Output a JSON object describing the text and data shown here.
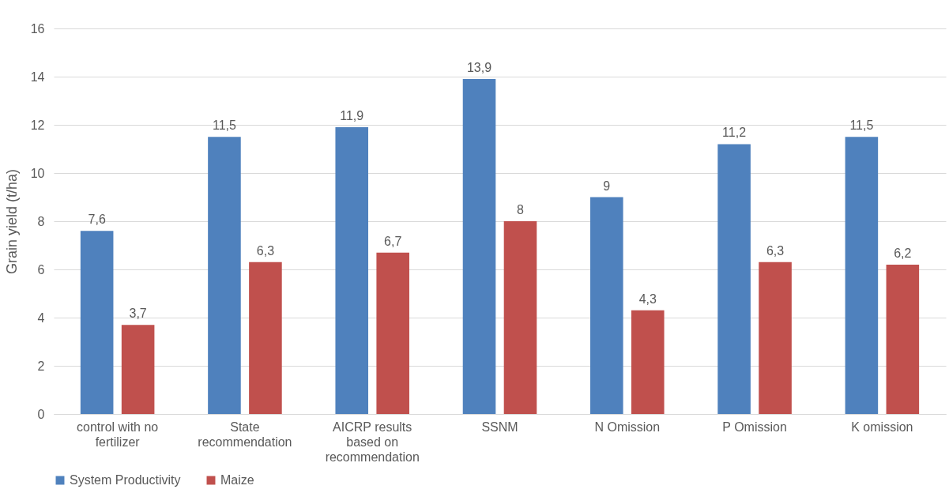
{
  "chart_data": {
    "type": "bar",
    "ylabel": "Grain yield (t/ha)",
    "categories": [
      "control with no fertilizer",
      "State recommendation",
      "AICRP results based on recommendation",
      "SSNM",
      "N Omission",
      "P Omission",
      "K omission"
    ],
    "series": [
      {
        "name": "System Productivity",
        "color": "#4f81bd",
        "values": [
          7.6,
          11.5,
          11.9,
          13.9,
          9,
          11.2,
          11.5
        ],
        "value_labels": [
          "7,6",
          "11,5",
          "11,9",
          "13,9",
          "9",
          "11,2",
          "11,5"
        ]
      },
      {
        "name": "Maize",
        "color": "#c0504d",
        "values": [
          3.7,
          6.3,
          6.7,
          8,
          4.3,
          6.3,
          6.2
        ],
        "value_labels": [
          "3,7",
          "6,3",
          "6,7",
          "8",
          "4,3",
          "6,3",
          "6,2"
        ]
      }
    ],
    "ylim": [
      0,
      16
    ],
    "yticks": [
      0,
      2,
      4,
      6,
      8,
      10,
      12,
      14,
      16
    ],
    "grid": "y",
    "legend": "bottom"
  }
}
